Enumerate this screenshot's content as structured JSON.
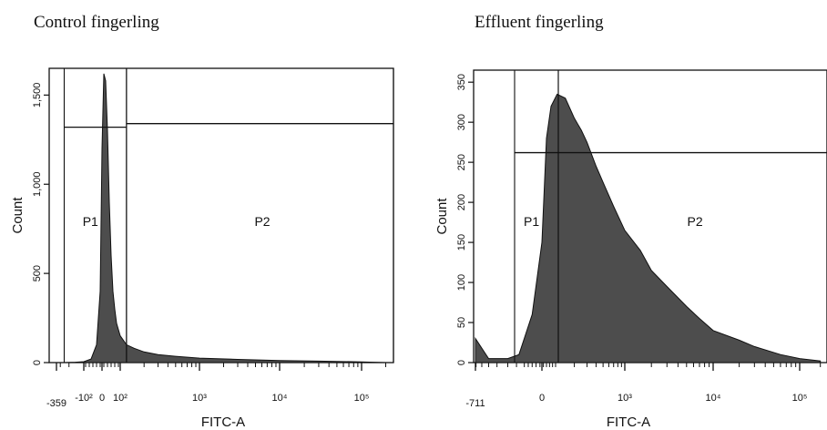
{
  "chart_data": [
    {
      "type": "area",
      "title": "Control fingerling",
      "xlabel": "FITC-A",
      "ylabel": "Count",
      "x_scale": "biexponential",
      "xlim": [
        -359,
        250000
      ],
      "ylim": [
        0,
        1650
      ],
      "x_tick_labels": [
        "-359",
        "-10²",
        "0",
        "10²",
        "10³",
        "10⁴",
        "10⁵"
      ],
      "x_tick_values": [
        -359,
        -100,
        0,
        100,
        1000,
        10000,
        100000
      ],
      "y_tick_labels": [
        "0",
        "500",
        "1,000",
        "1,500"
      ],
      "y_tick_values": [
        0,
        500,
        1000,
        1500
      ],
      "gates": [
        {
          "name": "P1",
          "x_range": [
            -250,
            120
          ],
          "y": 1320
        },
        {
          "name": "P2",
          "x_range": [
            120,
            250000
          ],
          "y": 1340
        }
      ],
      "series": [
        {
          "x": [
            -250,
            -150,
            -100,
            -60,
            -30,
            -10,
            0,
            10,
            20,
            30,
            40,
            50,
            60,
            70,
            80,
            100,
            120,
            150,
            200,
            300,
            500,
            1000,
            3000,
            10000,
            30000,
            100000,
            200000
          ],
          "values": [
            0,
            2,
            5,
            20,
            100,
            400,
            1200,
            1620,
            1580,
            1300,
            900,
            600,
            400,
            300,
            220,
            150,
            100,
            80,
            60,
            45,
            35,
            25,
            18,
            12,
            8,
            4,
            0
          ]
        }
      ],
      "grid": false,
      "fill_color": "#4d4d4d"
    },
    {
      "type": "area",
      "title": "Effluent fingerling",
      "xlabel": "FITC-A",
      "ylabel": "Count",
      "x_scale": "biexponential",
      "xlim": [
        -711,
        250000
      ],
      "ylim": [
        0,
        365
      ],
      "x_tick_labels": [
        "-711",
        "0",
        "10³",
        "10⁴",
        "10⁵"
      ],
      "x_tick_values": [
        -711,
        0,
        1000,
        10000,
        100000
      ],
      "y_tick_labels": [
        "0",
        "50",
        "100",
        "150",
        "200",
        "250",
        "300",
        "350"
      ],
      "y_tick_values": [
        0,
        50,
        100,
        150,
        200,
        250,
        300,
        350
      ],
      "gates": [
        {
          "name": "P1",
          "x_range": [
            -250,
            120
          ],
          "y": 262
        },
        {
          "name": "P2",
          "x_range": [
            120,
            250000
          ],
          "y": 262
        }
      ],
      "series": [
        {
          "x": [
            -711,
            -500,
            -300,
            -150,
            -50,
            0,
            30,
            60,
            100,
            150,
            200,
            250,
            300,
            400,
            500,
            700,
            1000,
            1500,
            2000,
            3000,
            5000,
            7000,
            10000,
            20000,
            30000,
            60000,
            100000,
            200000
          ],
          "values": [
            30,
            5,
            5,
            10,
            60,
            150,
            280,
            320,
            335,
            330,
            305,
            290,
            275,
            245,
            225,
            195,
            165,
            140,
            115,
            95,
            70,
            55,
            40,
            28,
            20,
            10,
            5,
            2
          ]
        }
      ],
      "grid": false,
      "fill_color": "#4d4d4d"
    }
  ]
}
